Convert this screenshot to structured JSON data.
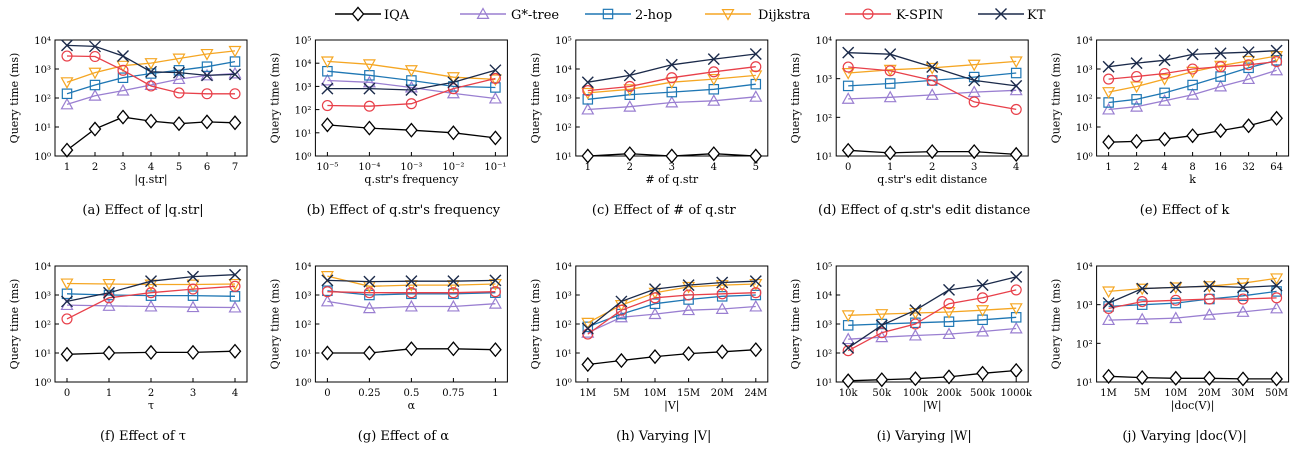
{
  "legend": [
    {
      "name": "IQA",
      "color": "#000000",
      "marker": "diamond"
    },
    {
      "name": "G*-tree",
      "color": "#9a7fd1",
      "marker": "triangle-up"
    },
    {
      "name": "2-hop",
      "color": "#1f77b4",
      "marker": "square"
    },
    {
      "name": "Dijkstra",
      "color": "#f5a623",
      "marker": "triangle-down"
    },
    {
      "name": "K-SPIN",
      "color": "#e8404a",
      "marker": "circle"
    },
    {
      "name": "KT",
      "color": "#1b2a4a",
      "marker": "x"
    }
  ],
  "chart_data": [
    {
      "type": "line",
      "caption": "(a) Effect of |q.str|",
      "ylabel": "Query time (ms)",
      "xlabel": "|q.str|",
      "categories": [
        "1",
        "2",
        "3",
        "4",
        "5",
        "6",
        "7"
      ],
      "y_ticks": [
        "10⁰",
        "10¹",
        "10²",
        "10³",
        "10⁴"
      ],
      "ylim_log": [
        0,
        4
      ],
      "log_scale": true,
      "series": [
        {
          "name": "IQA",
          "values": [
            1.6,
            8.5,
            22,
            16,
            13,
            15,
            14
          ]
        },
        {
          "name": "G*-tree",
          "values": [
            60,
            120,
            180,
            280,
            450,
            600,
            700
          ]
        },
        {
          "name": "2-hop",
          "values": [
            140,
            280,
            500,
            700,
            900,
            1200,
            1800
          ]
        },
        {
          "name": "Dijkstra",
          "values": [
            350,
            750,
            1300,
            1600,
            2300,
            3300,
            4200
          ]
        },
        {
          "name": "K-SPIN",
          "values": [
            2800,
            2700,
            900,
            260,
            150,
            140,
            140
          ]
        },
        {
          "name": "KT",
          "values": [
            6500,
            6000,
            2800,
            800,
            750,
            600,
            650
          ]
        }
      ]
    },
    {
      "type": "line",
      "caption": "(b) Effect of q.str's frequency",
      "ylabel": "Query time (ms)",
      "xlabel": "q.str's frequency",
      "categories": [
        "10⁻⁵",
        "10⁻⁴",
        "10⁻³",
        "10⁻²",
        "10⁻¹"
      ],
      "y_ticks": [
        "10⁰",
        "10¹",
        "10²",
        "10³",
        "10⁴",
        "10⁵"
      ],
      "ylim_log": [
        0,
        5
      ],
      "log_scale": true,
      "series": [
        {
          "name": "IQA",
          "values": [
            22,
            16,
            13,
            10,
            6
          ]
        },
        {
          "name": "G*-tree",
          "values": [
            1800,
            1500,
            900,
            500,
            300
          ]
        },
        {
          "name": "2-hop",
          "values": [
            4500,
            3000,
            1800,
            1000,
            900
          ]
        },
        {
          "name": "Dijkstra",
          "values": [
            12000,
            9000,
            5000,
            2500,
            2000
          ]
        },
        {
          "name": "K-SPIN",
          "values": [
            150,
            140,
            180,
            800,
            2200
          ]
        },
        {
          "name": "KT",
          "values": [
            800,
            800,
            700,
            1500,
            5000
          ]
        }
      ]
    },
    {
      "type": "line",
      "caption": "(c) Effect of # of q.str",
      "ylabel": "Query time (ms)",
      "xlabel": "# of q.str",
      "categories": [
        "1",
        "2",
        "3",
        "4",
        "5"
      ],
      "y_ticks": [
        "10¹",
        "10²",
        "10³",
        "10⁴",
        "10⁵"
      ],
      "ylim_log": [
        1,
        5
      ],
      "log_scale": true,
      "series": [
        {
          "name": "IQA",
          "values": [
            10,
            12,
            10,
            12,
            10
          ]
        },
        {
          "name": "G*-tree",
          "values": [
            400,
            500,
            700,
            800,
            1100
          ]
        },
        {
          "name": "2-hop",
          "values": [
            900,
            1300,
            1600,
            2000,
            3000
          ]
        },
        {
          "name": "Dijkstra",
          "values": [
            1500,
            2000,
            3500,
            4500,
            6000
          ]
        },
        {
          "name": "K-SPIN",
          "values": [
            1800,
            2500,
            5000,
            8000,
            12000
          ]
        },
        {
          "name": "KT",
          "values": [
            3500,
            6000,
            14000,
            22000,
            33000
          ]
        }
      ]
    },
    {
      "type": "line",
      "caption": "(d) Effect of q.str's edit distance",
      "ylabel": "Query time (ms)",
      "xlabel": "q.str's edit distance",
      "categories": [
        "0",
        "1",
        "2",
        "3",
        "4"
      ],
      "y_ticks": [
        "10¹",
        "10²",
        "10³",
        "10⁴"
      ],
      "ylim_log": [
        1,
        4
      ],
      "log_scale": true,
      "series": [
        {
          "name": "IQA",
          "values": [
            14,
            12,
            13,
            13,
            11
          ]
        },
        {
          "name": "G*-tree",
          "values": [
            300,
            330,
            380,
            450,
            500
          ]
        },
        {
          "name": "2-hop",
          "values": [
            650,
            750,
            900,
            1100,
            1400
          ]
        },
        {
          "name": "Dijkstra",
          "values": [
            1400,
            1700,
            1900,
            2300,
            2800
          ]
        },
        {
          "name": "K-SPIN",
          "values": [
            2000,
            1600,
            900,
            250,
            160
          ]
        },
        {
          "name": "KT",
          "values": [
            4700,
            4300,
            2000,
            900,
            650
          ]
        }
      ]
    },
    {
      "type": "line",
      "caption": "(e) Effect of k",
      "ylabel": "Query time (ms)",
      "xlabel": "k",
      "categories": [
        "1",
        "2",
        "4",
        "8",
        "16",
        "32",
        "64"
      ],
      "y_ticks": [
        "10⁰",
        "10¹",
        "10²",
        "10³",
        "10⁴"
      ],
      "ylim_log": [
        0,
        4
      ],
      "log_scale": true,
      "series": [
        {
          "name": "IQA",
          "values": [
            3,
            3.2,
            3.8,
            5,
            7.5,
            11,
            20
          ]
        },
        {
          "name": "G*-tree",
          "values": [
            40,
            50,
            80,
            130,
            250,
            450,
            900
          ]
        },
        {
          "name": "2-hop",
          "values": [
            70,
            90,
            150,
            280,
            550,
            1100,
            2000
          ]
        },
        {
          "name": "Dijkstra",
          "values": [
            160,
            250,
            450,
            800,
            1300,
            1900,
            2800
          ]
        },
        {
          "name": "K-SPIN",
          "values": [
            450,
            550,
            700,
            1000,
            1200,
            1400,
            1800
          ]
        },
        {
          "name": "KT",
          "values": [
            1200,
            1600,
            2000,
            3200,
            3500,
            3800,
            4300
          ]
        }
      ]
    },
    {
      "type": "line",
      "caption": "(f) Effect of τ",
      "ylabel": "Query time (ms)",
      "xlabel": "τ",
      "categories": [
        "0",
        "1",
        "2",
        "3",
        "4"
      ],
      "y_ticks": [
        "10⁰",
        "10¹",
        "10²",
        "10³",
        "10⁴"
      ],
      "ylim_log": [
        0,
        4
      ],
      "log_scale": true,
      "series": [
        {
          "name": "IQA",
          "values": [
            9,
            10,
            10.5,
            10.5,
            11.5
          ]
        },
        {
          "name": "G*-tree",
          "values": [
            450,
            420,
            400,
            380,
            370
          ]
        },
        {
          "name": "2-hop",
          "values": [
            1100,
            1000,
            950,
            950,
            900
          ]
        },
        {
          "name": "Dijkstra",
          "values": [
            2500,
            2400,
            2300,
            2300,
            2400
          ]
        },
        {
          "name": "K-SPIN",
          "values": [
            150,
            800,
            1200,
            1600,
            2000
          ]
        },
        {
          "name": "KT",
          "values": [
            600,
            1200,
            3000,
            4300,
            5000
          ]
        }
      ]
    },
    {
      "type": "line",
      "caption": "(g) Effect of α",
      "ylabel": "Query time (ms)",
      "xlabel": "α",
      "categories": [
        "0",
        "0.25",
        "0.5",
        "0.75",
        "1"
      ],
      "y_ticks": [
        "10⁰",
        "10¹",
        "10²",
        "10³",
        "10⁴"
      ],
      "ylim_log": [
        0,
        4
      ],
      "log_scale": true,
      "series": [
        {
          "name": "IQA",
          "values": [
            10,
            10,
            14,
            14,
            13
          ]
        },
        {
          "name": "G*-tree",
          "values": [
            600,
            350,
            400,
            400,
            500
          ]
        },
        {
          "name": "2-hop",
          "values": [
            1400,
            1000,
            1100,
            1100,
            1200
          ]
        },
        {
          "name": "Dijkstra",
          "values": [
            4500,
            2000,
            2200,
            2200,
            2400
          ]
        },
        {
          "name": "K-SPIN",
          "values": [
            1300,
            1200,
            1200,
            1200,
            1300
          ]
        },
        {
          "name": "KT",
          "values": [
            3200,
            2900,
            3000,
            3000,
            3200
          ]
        }
      ]
    },
    {
      "type": "line",
      "caption": "(h) Varying |V|",
      "ylabel": "Query time (ms)",
      "xlabel": "|V|",
      "categories": [
        "1M",
        "5M",
        "10M",
        "15M",
        "20M",
        "24M"
      ],
      "y_ticks": [
        "10⁰",
        "10¹",
        "10²",
        "10³",
        "10⁴"
      ],
      "ylim_log": [
        0,
        4
      ],
      "log_scale": true,
      "series": [
        {
          "name": "IQA",
          "values": [
            4,
            5.5,
            7.5,
            9.5,
            11,
            13
          ]
        },
        {
          "name": "G*-tree",
          "values": [
            50,
            170,
            220,
            300,
            330,
            400
          ]
        },
        {
          "name": "2-hop",
          "values": [
            80,
            220,
            500,
            700,
            900,
            1000
          ]
        },
        {
          "name": "Dijkstra",
          "values": [
            110,
            450,
            1200,
            1900,
            2200,
            2400
          ]
        },
        {
          "name": "K-SPIN",
          "values": [
            45,
            300,
            800,
            1000,
            1100,
            1200
          ]
        },
        {
          "name": "KT",
          "values": [
            70,
            600,
            1600,
            2200,
            2700,
            3000
          ]
        }
      ]
    },
    {
      "type": "line",
      "caption": "(i) Varying |W|",
      "ylabel": "Query time (ms)",
      "xlabel": "|W|",
      "categories": [
        "10k",
        "50k",
        "100k",
        "200k",
        "500k",
        "1000k"
      ],
      "y_ticks": [
        "10¹",
        "10²",
        "10³",
        "10⁴",
        "10⁵"
      ],
      "ylim_log": [
        1,
        5
      ],
      "log_scale": true,
      "series": [
        {
          "name": "IQA",
          "values": [
            11,
            12,
            13,
            15,
            20,
            25
          ]
        },
        {
          "name": "G*-tree",
          "values": [
            300,
            350,
            400,
            450,
            550,
            700
          ]
        },
        {
          "name": "2-hop",
          "values": [
            900,
            1000,
            1100,
            1200,
            1400,
            1700
          ]
        },
        {
          "name": "Dijkstra",
          "values": [
            2000,
            2200,
            2400,
            2600,
            3000,
            3500
          ]
        },
        {
          "name": "K-SPIN",
          "values": [
            120,
            500,
            1000,
            5000,
            8000,
            15000
          ]
        },
        {
          "name": "KT",
          "values": [
            150,
            900,
            3000,
            15000,
            22000,
            42000
          ]
        }
      ]
    },
    {
      "type": "line",
      "caption": "(j) Varying |doc(V)|",
      "ylabel": "Query time (ms)",
      "xlabel": "|doc(V)|",
      "categories": [
        "1M",
        "5M",
        "10M",
        "20M",
        "30M",
        "50M"
      ],
      "y_ticks": [
        "10¹",
        "10²",
        "10³",
        "10⁴"
      ],
      "ylim_log": [
        1,
        4
      ],
      "log_scale": true,
      "series": [
        {
          "name": "IQA",
          "values": [
            14,
            13,
            12.5,
            12.5,
            12,
            12
          ]
        },
        {
          "name": "G*-tree",
          "values": [
            400,
            420,
            450,
            550,
            650,
            800
          ]
        },
        {
          "name": "2-hop",
          "values": [
            900,
            1000,
            1100,
            1400,
            1700,
            2200
          ]
        },
        {
          "name": "Dijkstra",
          "values": [
            2200,
            2600,
            2800,
            3000,
            3600,
            4800
          ]
        },
        {
          "name": "K-SPIN",
          "values": [
            800,
            1200,
            1300,
            1400,
            1400,
            1500
          ]
        },
        {
          "name": "KT",
          "values": [
            1100,
            2600,
            2800,
            3000,
            2800,
            3100
          ]
        }
      ]
    }
  ]
}
